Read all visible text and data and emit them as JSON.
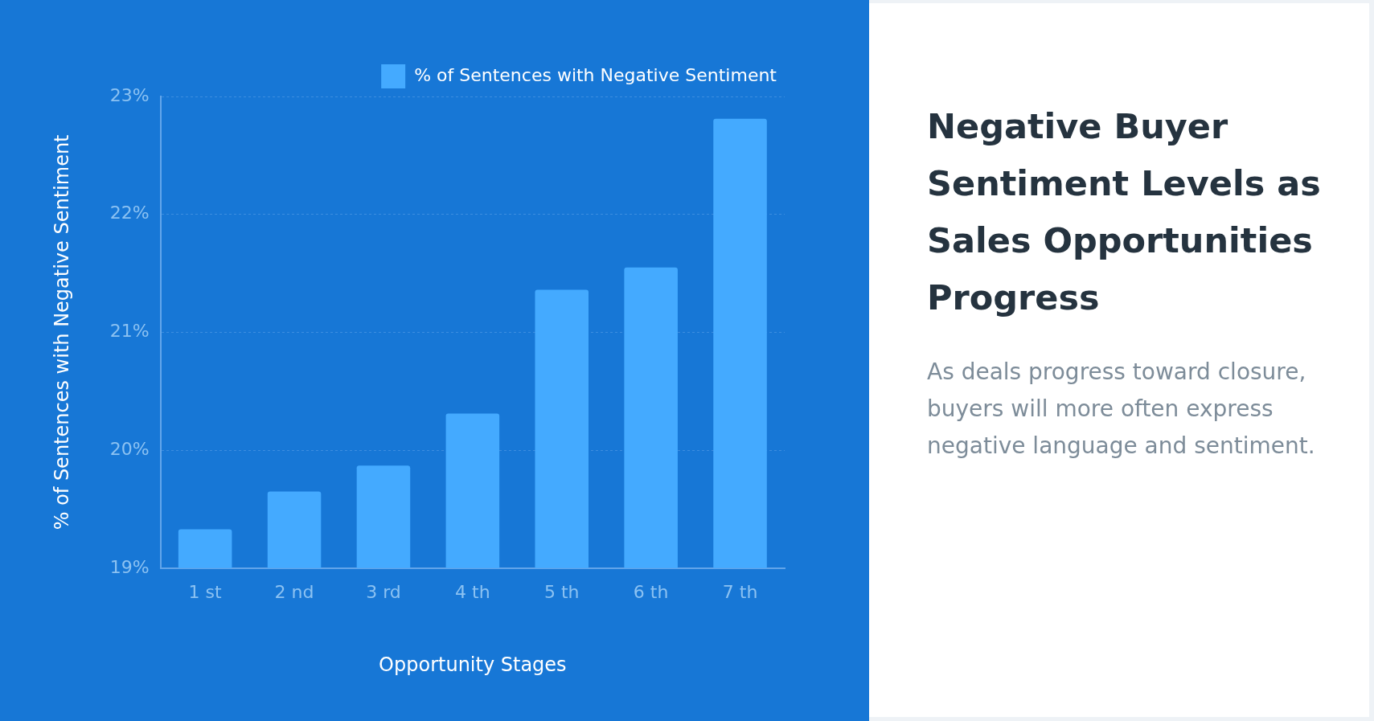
{
  "chart_data": {
    "type": "bar",
    "title": "Negative Buyer Sentiment Levels as Sales Opportunities Progress",
    "subtitle": "As deals progress toward closure, buyers will more often express negative language and sentiment.",
    "xlabel": "Opportunity Stages",
    "ylabel": "% of Sentences with Negative Sentiment",
    "categories": [
      "1 st",
      "2 nd",
      "3 rd",
      "4 th",
      "5 th",
      "6 th",
      "7 th"
    ],
    "series": [
      {
        "name": "% of Sentences with Negative Sentiment",
        "color": "#44aaff",
        "values": [
          19.33,
          19.65,
          19.87,
          20.31,
          21.36,
          21.55,
          22.81
        ]
      }
    ],
    "ylim": [
      19,
      23
    ],
    "yticks": [
      {
        "value": 19,
        "label": "19%"
      },
      {
        "value": 20,
        "label": "20%"
      },
      {
        "value": 21,
        "label": "21%"
      },
      {
        "value": 22,
        "label": "22%"
      },
      {
        "value": 23,
        "label": "23%"
      }
    ],
    "grid": "y",
    "legend": "top right"
  }
}
